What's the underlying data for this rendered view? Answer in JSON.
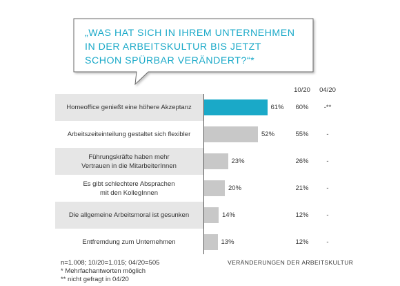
{
  "question": "„WAS HAT SICH IN IHREM UNTERNEHMEN IN DER ARBEITSKULTUR BIS JETZT SCHON SPÜRBAR VERÄNDERT?“*",
  "column_headers": {
    "prev": "10/20",
    "old": "04/20"
  },
  "colors": {
    "highlight": "#1aa9c8",
    "bar": "#c8c8c8",
    "band": "#e6e6e6",
    "question_text": "#1aa9c8"
  },
  "chart_data": {
    "type": "bar",
    "orientation": "horizontal",
    "categories": [
      "Homeoffice genießt eine höhere Akzeptanz",
      "Arbeitszeiteinteilung gestaltet sich flexibler",
      "Führungskräfte haben mehr Vertrauen in die MitarbeiterInnen",
      "Es gibt schlechtere Absprachen mit den KollegInnen",
      "Die allgemeine Arbeitsmoral ist gesunken",
      "Entfremdung zum Unternehmen"
    ],
    "category_lines": [
      [
        "Homeoffice genießt eine höhere Akzeptanz"
      ],
      [
        "Arbeitszeiteinteilung gestaltet sich flexibler"
      ],
      [
        "Führungskräfte haben mehr",
        "Vertrauen in die MitarbeiterInnen"
      ],
      [
        "Es gibt schlechtere Absprachen",
        "mit den KollegInnen"
      ],
      [
        "Die allgemeine Arbeitsmoral ist gesunken"
      ],
      [
        "Entfremdung zum Unternehmen"
      ]
    ],
    "values": [
      61,
      52,
      23,
      20,
      14,
      13
    ],
    "value_labels": [
      "61%",
      "52%",
      "23%",
      "20%",
      "14%",
      "13%"
    ],
    "series": [
      {
        "name": "10/20",
        "values": [
          60,
          55,
          26,
          21,
          12,
          12
        ],
        "labels": [
          "60%",
          "55%",
          "26%",
          "21%",
          "12%",
          "12%"
        ]
      },
      {
        "name": "04/20",
        "labels": [
          "-**",
          "-",
          "-",
          "-",
          "-",
          "-"
        ]
      }
    ],
    "highlight_index": 0,
    "xlim": [
      0,
      100
    ]
  },
  "notes": [
    "n=1.008;  10/20=1.015;  04/20=505",
    "* Mehrfachantworten  möglich",
    "** nicht gefragt in 04/20"
  ],
  "caption": "VERÄNDERUNGEN  DER ARBEITSKULTUR"
}
